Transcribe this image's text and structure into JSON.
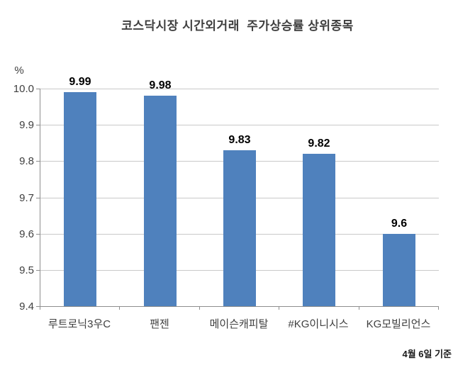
{
  "chart_data": {
    "type": "bar",
    "title": "코스닥시장 시간외거래  주가상승률 상위종목",
    "unit_label": "%",
    "categories": [
      "루트로닉3우C",
      "팬젠",
      "메이슨캐피탈",
      "#KG이니시스",
      "KG모빌리언스"
    ],
    "values": [
      9.99,
      9.98,
      9.83,
      9.82,
      9.6
    ],
    "data_labels": [
      "9.99",
      "9.98",
      "9.83",
      "9.82",
      "9.6"
    ],
    "ylabel": "%",
    "xlabel": "",
    "ylim": [
      9.4,
      10.0
    ],
    "ytick_step": 0.1,
    "ytick_labels": [
      "10.0",
      "9.9",
      "9.8",
      "9.7",
      "9.6",
      "9.5",
      "9.4"
    ],
    "grid": true,
    "legend": "none",
    "footnote": "4월 6일 기준",
    "colors": {
      "bar": "#4f81bd",
      "gridline": "#c9c9c9",
      "axis": "#8e8e8e",
      "title_text": "#3f3f3f",
      "tick_text": "#3f3f3f",
      "data_label_text": "#000000",
      "background": "#ffffff"
    }
  }
}
